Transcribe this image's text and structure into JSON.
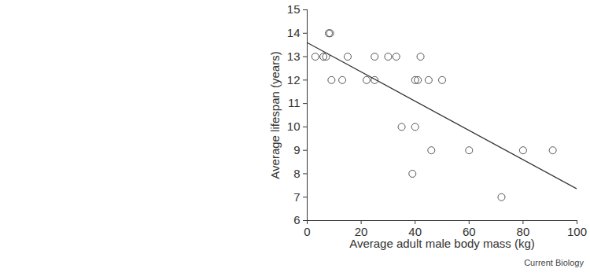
{
  "chart_data": {
    "type": "scatter",
    "x_label": "Average adult male body mass (kg)",
    "y_label": "Average lifespan (years)",
    "source": "Current Biology",
    "x": [
      3,
      6,
      7,
      8,
      8.5,
      9,
      13,
      15,
      22,
      25,
      25,
      30,
      33,
      35,
      39,
      40,
      40,
      41,
      42,
      45,
      46,
      50,
      60,
      72,
      80,
      91
    ],
    "values": [
      13,
      13,
      13,
      14,
      14,
      12,
      12,
      13,
      12,
      13,
      12,
      13,
      13,
      10,
      8,
      10,
      12,
      12,
      13,
      12,
      9,
      12,
      9,
      7,
      9,
      9
    ],
    "color": "#555555",
    "marker": "open_circle",
    "trend_line": {
      "x": [
        0,
        100
      ],
      "values": [
        13.6,
        7.35
      ],
      "color": "#333333"
    },
    "xlim": [
      0,
      100
    ],
    "xticks": [
      0,
      20,
      40,
      60,
      80,
      100
    ],
    "ylim": [
      6,
      15
    ],
    "yticks": [
      6,
      7,
      8,
      9,
      10,
      11,
      12,
      13,
      14,
      15
    ],
    "grid": false
  }
}
